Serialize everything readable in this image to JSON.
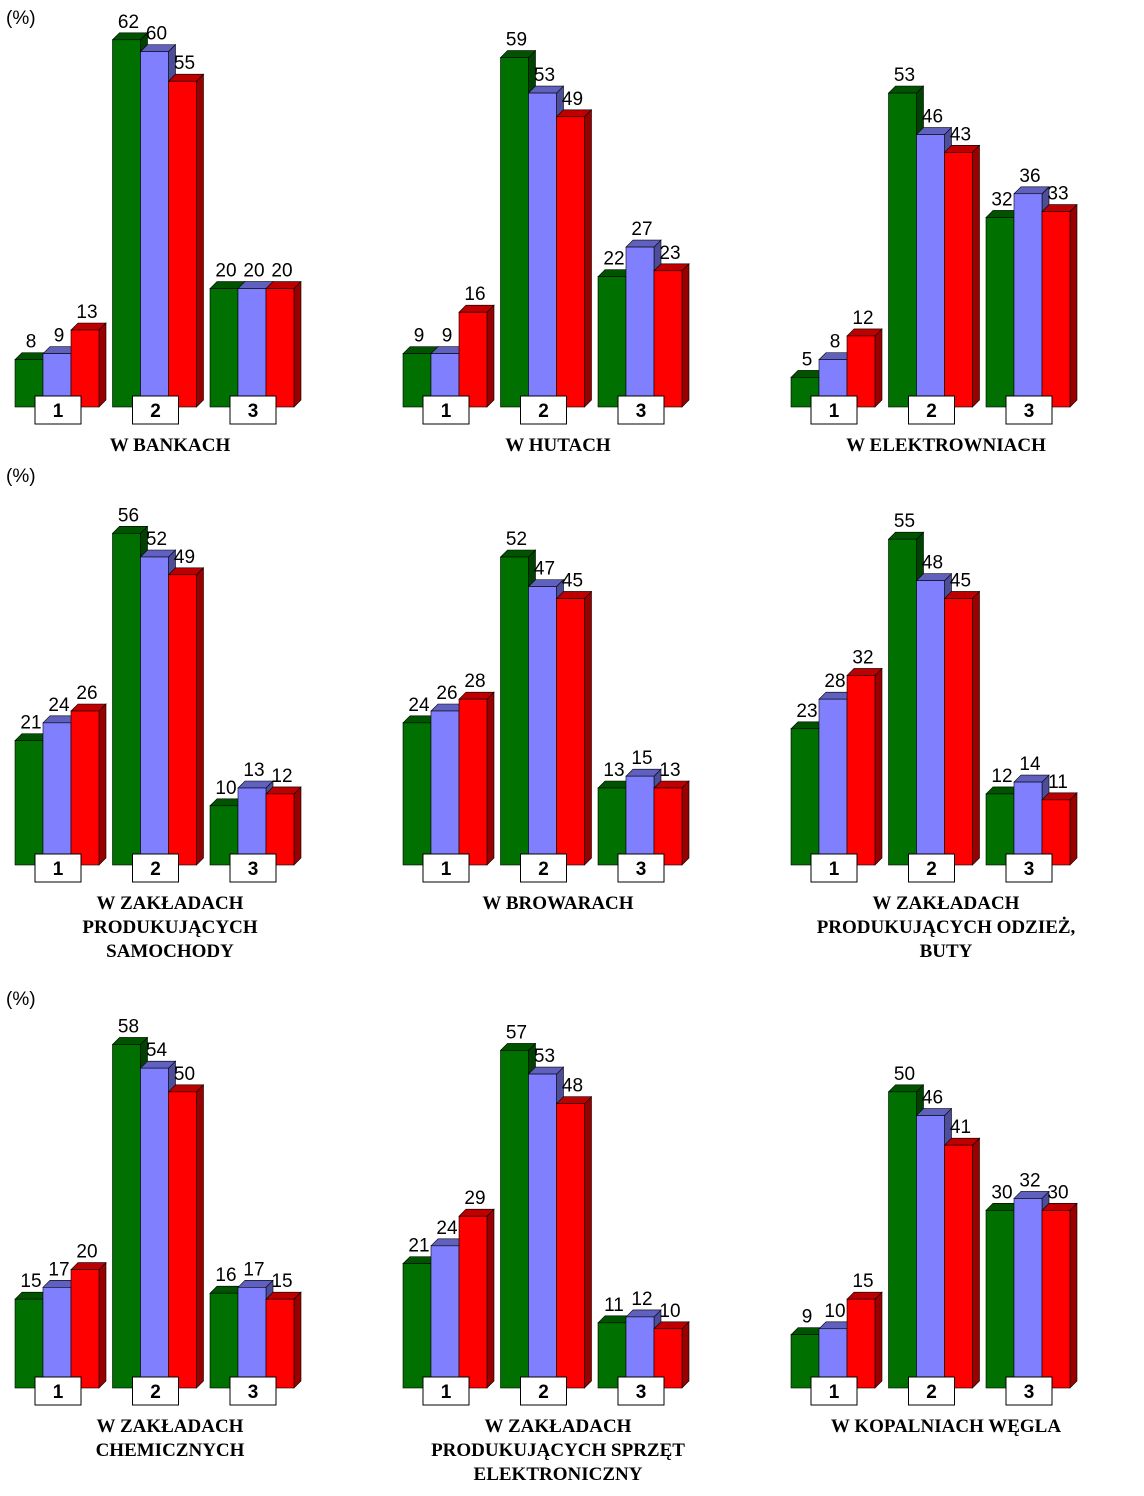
{
  "chart_data": [
    {
      "type": "bar",
      "annotation": "(%)",
      "title": "W BANKACH",
      "categories": [
        "1",
        "2",
        "3"
      ],
      "ylim": [
        0,
        65
      ],
      "series": [
        {
          "color": "#007000",
          "values": [
            8,
            62,
            20
          ]
        },
        {
          "color": "#8080ff",
          "values": [
            9,
            60,
            20
          ]
        },
        {
          "color": "#ff0000",
          "values": [
            13,
            55,
            20
          ]
        }
      ]
    },
    {
      "type": "bar",
      "title": "W HUTACH",
      "categories": [
        "1",
        "2",
        "3"
      ],
      "ylim": [
        0,
        65
      ],
      "series": [
        {
          "color": "#007000",
          "values": [
            9,
            59,
            22
          ]
        },
        {
          "color": "#8080ff",
          "values": [
            9,
            53,
            27
          ]
        },
        {
          "color": "#ff0000",
          "values": [
            16,
            49,
            23
          ]
        }
      ]
    },
    {
      "type": "bar",
      "title": "W ELEKTROWNIACH",
      "categories": [
        "1",
        "2",
        "3"
      ],
      "ylim": [
        0,
        65
      ],
      "series": [
        {
          "color": "#007000",
          "values": [
            5,
            53,
            32
          ]
        },
        {
          "color": "#8080ff",
          "values": [
            8,
            46,
            36
          ]
        },
        {
          "color": "#ff0000",
          "values": [
            12,
            43,
            33
          ]
        }
      ]
    },
    {
      "type": "bar",
      "annotation": "(%)",
      "title": "W ZAKŁADACH\nPRODUKUJĄCYCH\nSAMOCHODY",
      "categories": [
        "1",
        "2",
        "3"
      ],
      "ylim": [
        0,
        65
      ],
      "series": [
        {
          "color": "#007000",
          "values": [
            21,
            56,
            10
          ]
        },
        {
          "color": "#8080ff",
          "values": [
            24,
            52,
            13
          ]
        },
        {
          "color": "#ff0000",
          "values": [
            26,
            49,
            12
          ]
        }
      ]
    },
    {
      "type": "bar",
      "title": "W BROWARACH",
      "categories": [
        "1",
        "2",
        "3"
      ],
      "ylim": [
        0,
        65
      ],
      "series": [
        {
          "color": "#007000",
          "values": [
            24,
            52,
            13
          ]
        },
        {
          "color": "#8080ff",
          "values": [
            26,
            47,
            15
          ]
        },
        {
          "color": "#ff0000",
          "values": [
            28,
            45,
            13
          ]
        }
      ]
    },
    {
      "type": "bar",
      "title": "W ZAKŁADACH\nPRODUKUJĄCYCH ODZIEŻ,\nBUTY",
      "categories": [
        "1",
        "2",
        "3"
      ],
      "ylim": [
        0,
        65
      ],
      "series": [
        {
          "color": "#007000",
          "values": [
            23,
            55,
            12
          ]
        },
        {
          "color": "#8080ff",
          "values": [
            28,
            48,
            14
          ]
        },
        {
          "color": "#ff0000",
          "values": [
            32,
            45,
            11
          ]
        }
      ]
    },
    {
      "type": "bar",
      "annotation": "(%)",
      "title": "W ZAKŁADACH\nCHEMICZNYCH",
      "categories": [
        "1",
        "2",
        "3"
      ],
      "ylim": [
        0,
        65
      ],
      "series": [
        {
          "color": "#007000",
          "values": [
            15,
            58,
            16
          ]
        },
        {
          "color": "#8080ff",
          "values": [
            17,
            54,
            17
          ]
        },
        {
          "color": "#ff0000",
          "values": [
            20,
            50,
            15
          ]
        }
      ]
    },
    {
      "type": "bar",
      "title": "W ZAKŁADACH\nPRODUKUJĄCYCH SPRZĘT\nELEKTRONICZNY",
      "categories": [
        "1",
        "2",
        "3"
      ],
      "ylim": [
        0,
        65
      ],
      "series": [
        {
          "color": "#007000",
          "values": [
            21,
            57,
            11
          ]
        },
        {
          "color": "#8080ff",
          "values": [
            24,
            53,
            12
          ]
        },
        {
          "color": "#ff0000",
          "values": [
            29,
            48,
            10
          ]
        }
      ]
    },
    {
      "type": "bar",
      "title": "W KOPALNIACH WĘGLA",
      "categories": [
        "1",
        "2",
        "3"
      ],
      "ylim": [
        0,
        65
      ],
      "series": [
        {
          "color": "#007000",
          "values": [
            9,
            50,
            30
          ]
        },
        {
          "color": "#8080ff",
          "values": [
            10,
            46,
            32
          ]
        },
        {
          "color": "#ff0000",
          "values": [
            15,
            41,
            30
          ]
        }
      ]
    }
  ]
}
